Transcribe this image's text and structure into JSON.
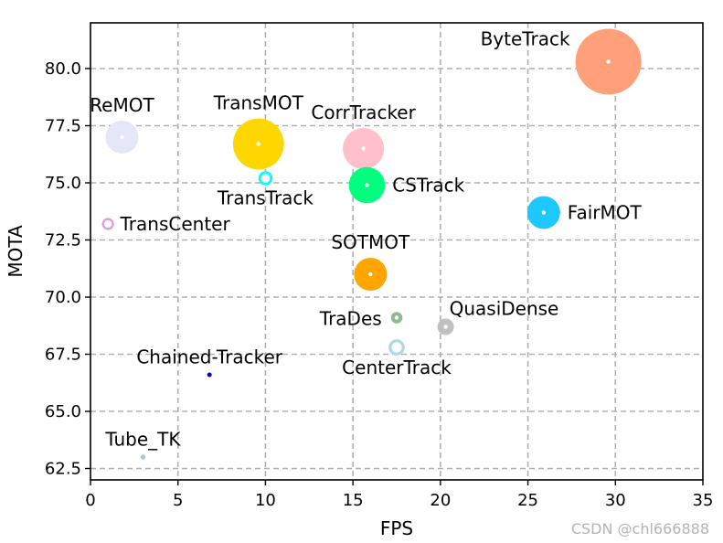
{
  "chart_data": {
    "type": "scatter",
    "xlabel": "FPS",
    "ylabel": "MOTA",
    "xlim": [
      0,
      35
    ],
    "ylim": [
      62.0,
      82.0
    ],
    "xticks": [
      0,
      5,
      10,
      15,
      20,
      25,
      30,
      35
    ],
    "yticks": [
      62.5,
      65.0,
      67.5,
      70.0,
      72.5,
      75.0,
      77.5,
      80.0
    ],
    "grid": true,
    "points": [
      {
        "label": "ByteTrack",
        "x": 29.6,
        "y": 80.3,
        "color": "#FFA07A",
        "size": 2.0,
        "ring": false,
        "label_pos": "upper-left"
      },
      {
        "label": "ReMOT",
        "x": 1.8,
        "y": 77.0,
        "color": "#E6E6FA",
        "size": 1.0,
        "ring": false,
        "label_pos": "above"
      },
      {
        "label": "TransMOT",
        "x": 9.6,
        "y": 76.7,
        "color": "#FFD700",
        "size": 1.55,
        "ring": false,
        "label_pos": "above"
      },
      {
        "label": "CorrTracker",
        "x": 15.6,
        "y": 76.5,
        "color": "#FFC0CB",
        "size": 1.25,
        "ring": false,
        "label_pos": "above"
      },
      {
        "label": "TransTrack",
        "x": 10.0,
        "y": 75.2,
        "color": "#00FFFF",
        "size": 0.35,
        "ring": true,
        "label_pos": "below"
      },
      {
        "label": "CSTrack",
        "x": 15.8,
        "y": 74.9,
        "color": "#00FF7F",
        "size": 1.1,
        "ring": false,
        "label_pos": "right"
      },
      {
        "label": "FairMOT",
        "x": 25.9,
        "y": 73.7,
        "color": "#1EC8FF",
        "size": 1.0,
        "ring": false,
        "label_pos": "right"
      },
      {
        "label": "TransCenter",
        "x": 1.0,
        "y": 73.2,
        "color": "#DDA0DD",
        "size": 0.3,
        "ring": true,
        "label_pos": "right"
      },
      {
        "label": "SOTMOT",
        "x": 16.0,
        "y": 71.0,
        "color": "#FFA500",
        "size": 1.0,
        "ring": false,
        "label_pos": "above"
      },
      {
        "label": "QuasiDense",
        "x": 20.3,
        "y": 68.7,
        "color": "#C0C0C0",
        "size": 0.5,
        "ring": false,
        "label_pos": "upper-right"
      },
      {
        "label": "TraDes",
        "x": 17.5,
        "y": 69.1,
        "color": "#8FBC8F",
        "size": 0.35,
        "ring": false,
        "label_pos": "left"
      },
      {
        "label": "CenterTrack",
        "x": 17.5,
        "y": 67.8,
        "color": "#ADD8E6",
        "size": 0.4,
        "ring": true,
        "label_pos": "below"
      },
      {
        "label": "Chained-Tracker",
        "x": 6.8,
        "y": 66.6,
        "color": "#0000CD",
        "size": 0.12,
        "ring": false,
        "label_pos": "above"
      },
      {
        "label": "Tube_TK",
        "x": 3.0,
        "y": 63.0,
        "color": "#B0C4DE",
        "size": 0.15,
        "ring": false,
        "label_pos": "above"
      }
    ]
  },
  "watermark": "CSDN @chl666888"
}
